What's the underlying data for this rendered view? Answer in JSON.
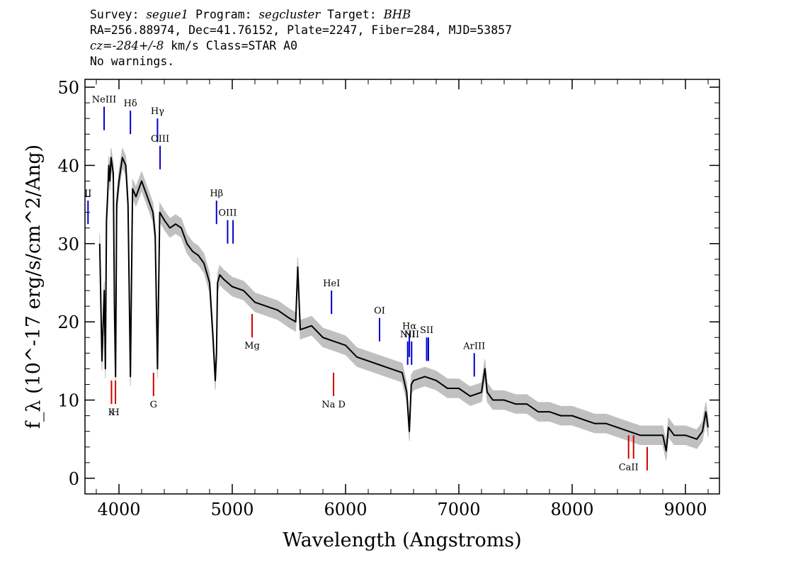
{
  "header": {
    "line1": {
      "survey_label": "Survey: ",
      "survey": "segue1",
      "program_label": " Program: ",
      "program": "segcluster",
      "target_label": " Target: ",
      "target": "BHB"
    },
    "line2": "RA=256.88974, Dec=41.76152, Plate=2247, Fiber=284, MJD=53857",
    "line3": {
      "cz_label": "cz=",
      "cz_value": "-284+/-8",
      "rest": " km/s Class=STAR A0"
    },
    "line4": "No warnings."
  },
  "chart_data": {
    "type": "line",
    "xlabel": "Wavelength (Angstroms)",
    "ylabel": "f_λ (10^-17 erg/s/cm^2/Ang)",
    "xlim": [
      3700,
      9300
    ],
    "ylim": [
      -2,
      51
    ],
    "x_ticks": [
      4000,
      5000,
      6000,
      7000,
      8000,
      9000
    ],
    "x_tick_labels": [
      "4000",
      "5000",
      "6000",
      "7000",
      "8000",
      "9000"
    ],
    "y_ticks": [
      0,
      10,
      20,
      30,
      40,
      50
    ],
    "y_tick_labels": [
      "0",
      "10",
      "20",
      "30",
      "40",
      "50"
    ],
    "colors": {
      "spectrum": "#000000",
      "error": "#c0c0c0",
      "emission": "#0000cc",
      "absorption": "#d00000"
    },
    "series": [
      {
        "name": "",
        "x": [
          3830,
          3850,
          3870,
          3880,
          3890,
          3900,
          3910,
          3920,
          3930,
          3950,
          3960,
          3970,
          3980,
          4000,
          4030,
          4060,
          4080,
          4101,
          4120,
          4150,
          4200,
          4250,
          4300,
          4320,
          4340,
          4360,
          4400,
          4450,
          4500,
          4550,
          4600,
          4650,
          4700,
          4750,
          4800,
          4830,
          4850,
          4861,
          4870,
          4890,
          4920,
          5000,
          5100,
          5200,
          5300,
          5400,
          5500,
          5560,
          5578,
          5600,
          5700,
          5800,
          5900,
          6000,
          6100,
          6200,
          6300,
          6400,
          6500,
          6540,
          6563,
          6580,
          6600,
          6700,
          6800,
          6900,
          7000,
          7100,
          7200,
          7230,
          7250,
          7300,
          7400,
          7500,
          7600,
          7700,
          7800,
          7900,
          8000,
          8100,
          8200,
          8300,
          8400,
          8500,
          8600,
          8700,
          8800,
          8830,
          8850,
          8900,
          9000,
          9100,
          9150,
          9180,
          9200
        ],
        "y": [
          30,
          15,
          24,
          14,
          33,
          36,
          40,
          38,
          41,
          39,
          22,
          13,
          35,
          38,
          41,
          40,
          35,
          13,
          37,
          36,
          38,
          36,
          34,
          31,
          14,
          34,
          33,
          32,
          32.5,
          32,
          30,
          29,
          28.5,
          27.5,
          25,
          18,
          12.5,
          16,
          25,
          26,
          25.5,
          24.5,
          24,
          22.5,
          22,
          21.5,
          20.5,
          20,
          27,
          19,
          19.5,
          18,
          17.5,
          17,
          15.5,
          15,
          14.5,
          14,
          13.5,
          11,
          6,
          12,
          12.5,
          13,
          12.5,
          11.5,
          11.5,
          10.5,
          11,
          14,
          11,
          10,
          10,
          9.5,
          9.5,
          8.5,
          8.5,
          8,
          8,
          7.5,
          7,
          7,
          6.5,
          6,
          5.5,
          5.5,
          5.5,
          3.5,
          6.5,
          5.5,
          5.5,
          5,
          6,
          8.5,
          6.5
        ]
      }
    ],
    "error_band": 1.2,
    "lines": [
      {
        "name": "NeIII",
        "x": 3869,
        "y1": 44.5,
        "y2": 47.5,
        "color": "blue",
        "label_side": "above"
      },
      {
        "name": "Hδ",
        "x": 4101,
        "y1": 44,
        "y2": 47,
        "color": "blue",
        "label_side": "above"
      },
      {
        "name": "Hγ",
        "x": 4340,
        "y1": 43,
        "y2": 46,
        "color": "blue",
        "label_side": "above"
      },
      {
        "name": "OIII",
        "x": 4363,
        "y1": 39.5,
        "y2": 42.5,
        "color": "blue",
        "label_side": "above"
      },
      {
        "name": "II",
        "x": 3727,
        "y1": 32.5,
        "y2": 35.5,
        "color": "blue",
        "label_side": "above"
      },
      {
        "name": "Hβ",
        "x": 4861,
        "y1": 32.5,
        "y2": 35.5,
        "color": "blue",
        "label_side": "above"
      },
      {
        "name": "OIII",
        "x": 4959,
        "y1": 30,
        "y2": 33,
        "color": "blue",
        "label_side": "above"
      },
      {
        "name": "",
        "x": 5007,
        "y1": 30,
        "y2": 33,
        "color": "blue",
        "label_side": "none"
      },
      {
        "name": "HeI",
        "x": 5876,
        "y1": 21,
        "y2": 24,
        "color": "blue",
        "label_side": "above"
      },
      {
        "name": "OI",
        "x": 6300,
        "y1": 17.5,
        "y2": 20.5,
        "color": "blue",
        "label_side": "above"
      },
      {
        "name": "NII",
        "x": 6548,
        "y1": 14.5,
        "y2": 17.5,
        "color": "blue",
        "label_side": "above"
      },
      {
        "name": "Hα",
        "x": 6563,
        "y1": 15.5,
        "y2": 18.5,
        "color": "blue",
        "label_side": "above"
      },
      {
        "name": "NII",
        "x": 6583,
        "y1": 14.5,
        "y2": 17.5,
        "color": "blue",
        "label_side": "above"
      },
      {
        "name": "SII",
        "x": 6716,
        "y1": 15,
        "y2": 18,
        "color": "blue",
        "label_side": "above"
      },
      {
        "name": "",
        "x": 6731,
        "y1": 15,
        "y2": 18,
        "color": "blue",
        "label_side": "none"
      },
      {
        "name": "ArIII",
        "x": 7136,
        "y1": 13,
        "y2": 16,
        "color": "blue",
        "label_side": "above"
      },
      {
        "name": "K",
        "x": 3934,
        "y1": 9.5,
        "y2": 12.5,
        "color": "red",
        "label_side": "below"
      },
      {
        "name": "H",
        "x": 3969,
        "y1": 9.5,
        "y2": 12.5,
        "color": "red",
        "label_side": "below"
      },
      {
        "name": "G",
        "x": 4305,
        "y1": 10.5,
        "y2": 13.5,
        "color": "red",
        "label_side": "below"
      },
      {
        "name": "Mg",
        "x": 5175,
        "y1": 18,
        "y2": 21,
        "color": "red",
        "label_side": "below"
      },
      {
        "name": "Na D",
        "x": 5894,
        "y1": 10.5,
        "y2": 13.5,
        "color": "red",
        "label_side": "below"
      },
      {
        "name": "CaII",
        "x": 8498,
        "y1": 2.5,
        "y2": 5.5,
        "color": "red",
        "label_side": "below"
      },
      {
        "name": "",
        "x": 8542,
        "y1": 2.5,
        "y2": 5.5,
        "color": "red",
        "label_side": "none"
      },
      {
        "name": "",
        "x": 8662,
        "y1": 1,
        "y2": 4,
        "color": "red",
        "label_side": "none"
      }
    ]
  }
}
